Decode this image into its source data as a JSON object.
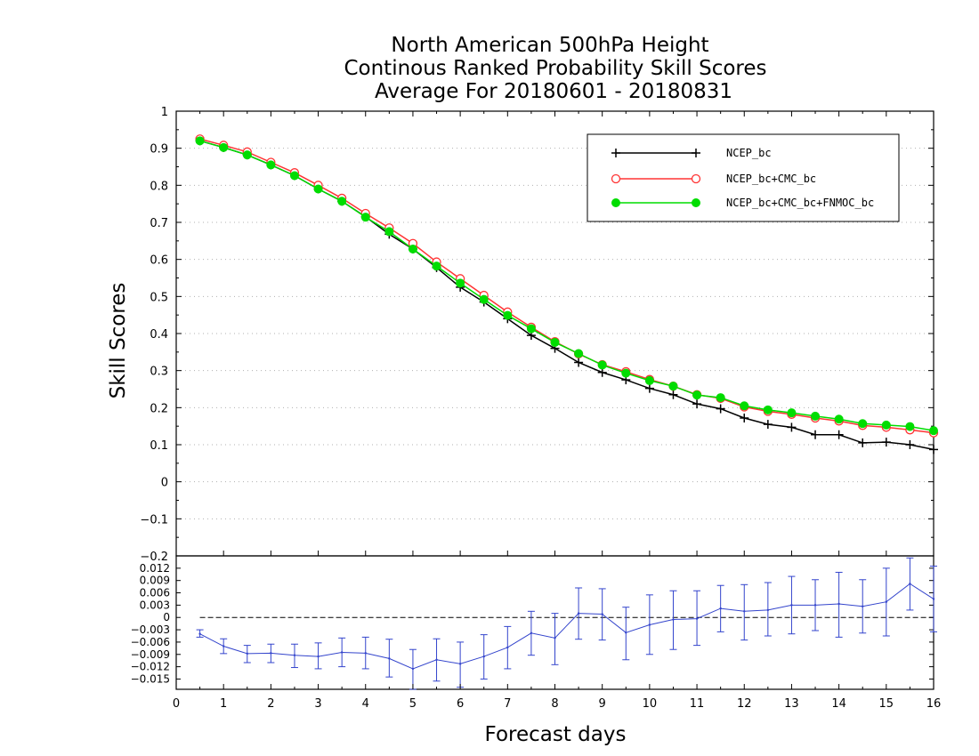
{
  "chart_data": [
    {
      "type": "line",
      "title": [
        "North American 500hPa Height",
        "Continous Ranked Probability Skill Scores",
        "Average For 20180601 - 20180831"
      ],
      "xlabel": "Forecast days",
      "ylabel": "Skill Scores",
      "xlim": [
        0,
        16
      ],
      "ylim": [
        -0.2,
        1
      ],
      "xticks": [
        "0",
        "1",
        "2",
        "3",
        "4",
        "5",
        "6",
        "7",
        "8",
        "9",
        "10",
        "11",
        "12",
        "13",
        "14",
        "15",
        "16"
      ],
      "yticks": [
        "-0.2",
        "-0.1",
        "0",
        "0.1",
        "0.2",
        "0.3",
        "0.4",
        "0.5",
        "0.6",
        "0.7",
        "0.8",
        "0.9",
        "1"
      ],
      "grid": true,
      "legend": "top-right",
      "x": [
        0.5,
        1,
        1.5,
        2,
        2.5,
        3,
        3.5,
        4,
        4.5,
        5,
        5.5,
        6,
        6.5,
        7,
        7.5,
        8,
        8.5,
        9,
        9.5,
        10,
        10.5,
        11,
        11.5,
        12,
        12.5,
        13,
        13.5,
        14,
        14.5,
        15,
        15.5,
        16
      ],
      "series": [
        {
          "name": "NCEP_bc",
          "color": "#000000",
          "marker": "plus",
          "values": [
            0.92,
            0.902,
            0.882,
            0.855,
            0.826,
            0.79,
            0.757,
            0.715,
            0.668,
            0.628,
            0.578,
            0.525,
            0.485,
            0.44,
            0.395,
            0.36,
            0.322,
            0.295,
            0.275,
            0.252,
            0.235,
            0.21,
            0.197,
            0.172,
            0.155,
            0.147,
            0.127,
            0.127,
            0.105,
            0.107,
            0.1,
            0.087
          ]
        },
        {
          "name": "NCEP_bc+CMC_bc",
          "color": "#ff3333",
          "marker": "open-circle",
          "values": [
            0.925,
            0.908,
            0.89,
            0.862,
            0.834,
            0.8,
            0.765,
            0.724,
            0.685,
            0.643,
            0.593,
            0.548,
            0.503,
            0.458,
            0.417,
            0.378,
            0.345,
            0.316,
            0.297,
            0.276,
            0.258,
            0.235,
            0.225,
            0.202,
            0.19,
            0.182,
            0.172,
            0.164,
            0.152,
            0.147,
            0.14,
            0.132
          ]
        },
        {
          "name": "NCEP_bc+CMC_bc+FNMOC_bc",
          "color": "#00dd00",
          "marker": "filled-circle",
          "values": [
            0.92,
            0.902,
            0.882,
            0.855,
            0.826,
            0.79,
            0.757,
            0.714,
            0.675,
            0.628,
            0.582,
            0.536,
            0.492,
            0.449,
            0.413,
            0.376,
            0.346,
            0.315,
            0.293,
            0.273,
            0.258,
            0.234,
            0.227,
            0.205,
            0.194,
            0.186,
            0.177,
            0.169,
            0.157,
            0.153,
            0.149,
            0.138
          ]
        }
      ]
    },
    {
      "type": "line",
      "xlim": [
        0,
        16
      ],
      "ylim": [
        -0.0175,
        0.015
      ],
      "yticks": [
        "0.012",
        "0.009",
        "0.006",
        "0.003",
        "0",
        "-0.003",
        "-0.006",
        "-0.009",
        "-0.012",
        "-0.015"
      ],
      "reference_line": 0,
      "series": [
        {
          "color": "#3344cc",
          "x": [
            0.5,
            1,
            1.5,
            2,
            2.5,
            3,
            3.5,
            4,
            4.5,
            5,
            5.5,
            6,
            6.5,
            7,
            7.5,
            8,
            8.5,
            9,
            9.5,
            10,
            10.5,
            11,
            11.5,
            12,
            12.5,
            13,
            13.5,
            14,
            14.5,
            15,
            15.5,
            16
          ],
          "values": [
            -0.004,
            -0.007,
            -0.0088,
            -0.0087,
            -0.0092,
            -0.0095,
            -0.0085,
            -0.0087,
            -0.01,
            -0.0125,
            -0.0103,
            -0.0113,
            -0.0095,
            -0.0073,
            -0.0038,
            -0.005,
            0.001,
            0.0008,
            -0.0037,
            -0.0018,
            -0.0005,
            -0.0003,
            0.0022,
            0.0015,
            0.0018,
            0.003,
            0.003,
            0.0033,
            0.0027,
            0.0038,
            0.0082,
            0.0045
          ],
          "error_low": [
            -0.0048,
            -0.0088,
            -0.011,
            -0.011,
            -0.0122,
            -0.0125,
            -0.012,
            -0.0125,
            -0.0145,
            -0.0175,
            -0.0155,
            -0.017,
            -0.015,
            -0.0125,
            -0.0092,
            -0.0115,
            -0.0053,
            -0.0055,
            -0.0103,
            -0.009,
            -0.0078,
            -0.0068,
            -0.0035,
            -0.0055,
            -0.0045,
            -0.004,
            -0.0032,
            -0.0048,
            -0.0038,
            -0.0045,
            0.0018,
            -0.0035
          ],
          "error_high": [
            -0.003,
            -0.0052,
            -0.0068,
            -0.0065,
            -0.0065,
            -0.0062,
            -0.005,
            -0.0048,
            -0.0053,
            -0.0078,
            -0.0052,
            -0.006,
            -0.0042,
            -0.0022,
            0.0015,
            0.001,
            0.0072,
            0.007,
            0.0025,
            0.0055,
            0.0065,
            0.0065,
            0.0078,
            0.008,
            0.0085,
            0.01,
            0.0092,
            0.011,
            0.0092,
            0.012,
            0.0145,
            0.0125
          ]
        }
      ]
    }
  ]
}
